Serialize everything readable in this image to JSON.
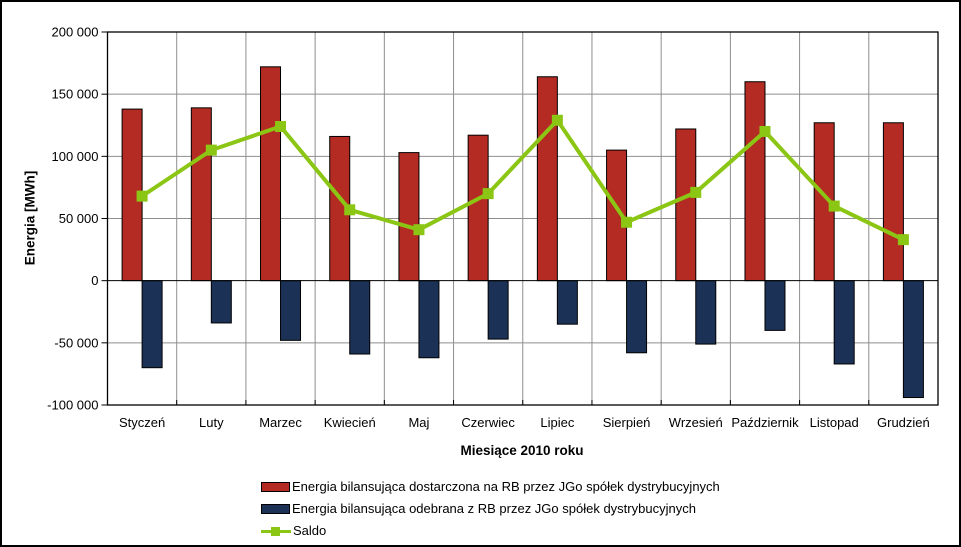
{
  "chart_data": {
    "type": "bar",
    "categories": [
      "Styczeń",
      "Luty",
      "Marzec",
      "Kwiecień",
      "Maj",
      "Czerwiec",
      "Lipiec",
      "Sierpień",
      "Wrzesień",
      "Październik",
      "Listopad",
      "Grudzień"
    ],
    "series": [
      {
        "name": "Energia bilansująca dostarczona na RB przez JGo spółek dystrybucyjnych",
        "type": "bar",
        "color": "#B32B23",
        "values": [
          138000,
          139000,
          172000,
          116000,
          103000,
          117000,
          164000,
          105000,
          122000,
          160000,
          127000,
          127000
        ]
      },
      {
        "name": "Energia bilansująca odebrana z RB przez JGo spółek dystrybucyjnych",
        "type": "bar",
        "color": "#1C3156",
        "values": [
          -70000,
          -34000,
          -48000,
          -59000,
          -62000,
          -47000,
          -35000,
          -58000,
          -51000,
          -40000,
          -67000,
          -94000
        ]
      },
      {
        "name": "Saldo",
        "type": "line",
        "marker": "square",
        "color": "#8CC614",
        "values": [
          68000,
          105000,
          124000,
          57000,
          41000,
          70000,
          129000,
          47000,
          71000,
          120000,
          60000,
          33000
        ]
      }
    ],
    "xlabel": "Miesiące 2010 roku",
    "ylabel": "Energia [MWh]",
    "ylim": [
      -100000,
      200000
    ],
    "ytick_interval": 50000,
    "ytick_labels": [
      "200 000",
      "150 000",
      "100 000",
      "50 000",
      "0",
      "-50 000",
      "-100 000"
    ],
    "grid": "on",
    "gridline_color": "#8E8E8E",
    "plot_border_color": "#000000",
    "background_color": "#FFFFFF",
    "legend_position": "bottom"
  }
}
